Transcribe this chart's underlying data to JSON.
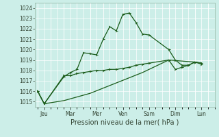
{
  "xlabel": "Pression niveau de la mer( hPa )",
  "background_color": "#cceee8",
  "grid_color": "#ffffff",
  "line_color": "#1a5c1a",
  "ylim": [
    1014.5,
    1024.5
  ],
  "yticks": [
    1015,
    1016,
    1017,
    1018,
    1019,
    1020,
    1021,
    1022,
    1023,
    1024
  ],
  "x_labels": [
    "Jeu",
    "Mar",
    "Mer",
    "Ven",
    "Sam",
    "Dim",
    "Lun"
  ],
  "day_x": [
    0,
    2,
    4,
    6,
    8,
    10,
    12
  ],
  "xlim": [
    -0.2,
    13.5
  ],
  "line1_x": [
    0,
    0.5,
    2,
    2.5,
    3.0,
    3.5,
    4,
    4.5,
    5,
    5.5,
    6,
    6.5,
    7,
    7.5,
    8,
    8.5,
    10,
    10.5,
    11,
    11.5,
    12,
    12.5
  ],
  "line1_y": [
    1016.0,
    1014.8,
    1017.4,
    1017.8,
    1018.1,
    1019.7,
    1019.6,
    1019.5,
    1021.0,
    1022.2,
    1021.8,
    1023.4,
    1023.5,
    1022.6,
    1021.5,
    1021.4,
    1020.0,
    1019.0,
    1018.5,
    1018.5,
    1018.8,
    1018.6
  ],
  "line2_x": [
    0,
    0.5,
    2,
    2.5,
    3.0,
    3.5,
    4,
    4.5,
    5,
    5.5,
    6,
    6.5,
    7,
    7.5,
    8,
    8.5,
    10,
    10.5,
    11,
    11.5,
    12,
    12.5
  ],
  "line2_y": [
    1016.0,
    1014.8,
    1017.5,
    1017.5,
    1017.7,
    1017.8,
    1017.9,
    1018.0,
    1018.0,
    1018.1,
    1018.1,
    1018.2,
    1018.3,
    1018.5,
    1018.6,
    1018.7,
    1019.0,
    1018.1,
    1018.3,
    1018.5,
    1018.8,
    1018.7
  ],
  "line3_x": [
    0,
    0.5,
    2,
    4,
    6,
    8,
    10,
    12,
    12.5
  ],
  "line3_y": [
    1016.0,
    1014.8,
    1015.1,
    1015.8,
    1016.8,
    1017.8,
    1019.0,
    1018.8,
    1018.7
  ],
  "vline_x": [
    1,
    3,
    5,
    7,
    9,
    11
  ],
  "minor_grid_step": 1
}
